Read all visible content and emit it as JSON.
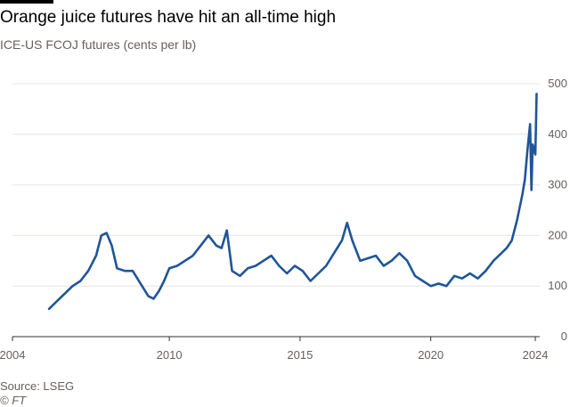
{
  "header": {
    "title": "Orange juice futures have hit an all-time high",
    "subtitle": "ICE-US FCOJ futures (cents per lb)"
  },
  "footer": {
    "source": "Source: LSEG",
    "credit": "© FT"
  },
  "colors": {
    "line": "#1f5599",
    "grid": "#e8e4df",
    "axis": "#33302e"
  },
  "chart_data": {
    "type": "line",
    "title": "Orange juice futures have hit an all-time high",
    "subtitle": "ICE-US FCOJ futures (cents per lb)",
    "xlabel": "",
    "ylabel": "cents per lb",
    "xlim": [
      2004,
      2024.1
    ],
    "ylim": [
      0,
      500
    ],
    "grid": true,
    "legend": "none",
    "x_ticks": [
      2004,
      2010,
      2015,
      2020,
      2024
    ],
    "x_tick_labels": [
      "2004",
      "2010",
      "2015",
      "2020",
      "2024"
    ],
    "y_ticks": [
      0,
      100,
      200,
      300,
      400,
      500
    ],
    "y_tick_labels": [
      "0",
      "100",
      "200",
      "300",
      "400",
      "500"
    ],
    "series": [
      {
        "name": "ICE-US FCOJ futures",
        "x": [
          2005.4,
          2005.7,
          2006.0,
          2006.3,
          2006.6,
          2006.9,
          2007.2,
          2007.4,
          2007.6,
          2007.8,
          2008.0,
          2008.3,
          2008.6,
          2008.9,
          2009.2,
          2009.4,
          2009.6,
          2009.8,
          2010.0,
          2010.3,
          2010.6,
          2010.9,
          2011.2,
          2011.5,
          2011.8,
          2012.0,
          2012.2,
          2012.4,
          2012.7,
          2013.0,
          2013.3,
          2013.6,
          2013.9,
          2014.2,
          2014.5,
          2014.8,
          2015.1,
          2015.4,
          2015.7,
          2016.0,
          2016.3,
          2016.6,
          2016.8,
          2017.0,
          2017.3,
          2017.6,
          2017.9,
          2018.2,
          2018.5,
          2018.8,
          2019.1,
          2019.4,
          2019.7,
          2020.0,
          2020.3,
          2020.6,
          2020.9,
          2021.2,
          2021.5,
          2021.8,
          2022.1,
          2022.4,
          2022.7,
          2022.9,
          2023.1,
          2023.3,
          2023.5,
          2023.6,
          2023.7,
          2023.8,
          2023.85,
          2023.9,
          2024.0,
          2024.05
        ],
        "values": [
          55,
          70,
          85,
          100,
          110,
          130,
          160,
          200,
          205,
          180,
          135,
          130,
          130,
          105,
          80,
          75,
          90,
          110,
          135,
          140,
          150,
          160,
          180,
          200,
          180,
          175,
          210,
          130,
          120,
          135,
          140,
          150,
          160,
          140,
          125,
          140,
          130,
          110,
          125,
          140,
          165,
          190,
          225,
          190,
          150,
          155,
          160,
          140,
          150,
          165,
          150,
          120,
          110,
          100,
          105,
          100,
          120,
          115,
          125,
          115,
          130,
          150,
          165,
          175,
          190,
          230,
          280,
          310,
          370,
          420,
          290,
          380,
          360,
          480
        ]
      }
    ]
  }
}
